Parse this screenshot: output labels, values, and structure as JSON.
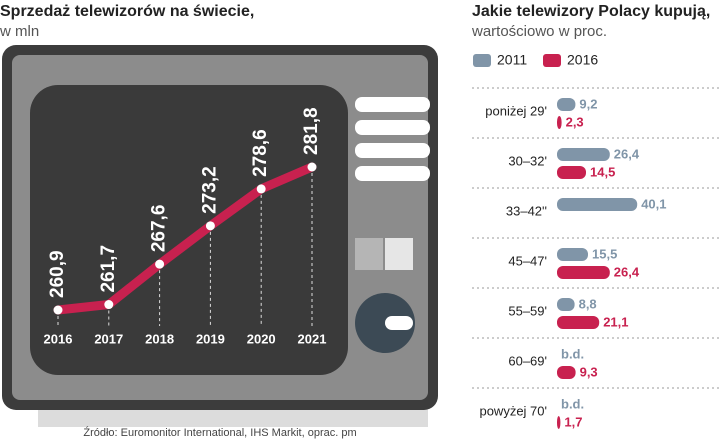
{
  "chart_data": [
    {
      "type": "line",
      "title": "Sprzedaż telewizorów na świecie,",
      "subtitle": "w mln",
      "categories": [
        "2016",
        "2017",
        "2018",
        "2019",
        "2020",
        "2021"
      ],
      "values": [
        260.9,
        261.7,
        267.6,
        273.2,
        278.6,
        281.8
      ],
      "value_labels": [
        "260,9",
        "261,7",
        "267,6",
        "273,2",
        "278,6",
        "281,8"
      ],
      "color": "#c8214f",
      "source": "Źródło: Euromonitor International, IHS Markit, oprac. pm"
    },
    {
      "type": "hbar",
      "title": "Jakie telewizory Polacy kupują,",
      "subtitle": "wartościowo w proc.",
      "categories": [
        "poniżej 29'",
        "30–32'",
        "33–42''",
        "45–47'",
        "55–59'",
        "60–69'",
        "powyżej 70'"
      ],
      "series": [
        {
          "name": "2011",
          "color": "#8095a8",
          "values": [
            9.2,
            26.4,
            40.1,
            15.5,
            8.8,
            null,
            null
          ],
          "value_labels": [
            "9,2",
            "26,4",
            "40,1",
            "15,5",
            "8,8",
            "b.d.",
            "b.d."
          ]
        },
        {
          "name": "2016",
          "color": "#c8214f",
          "values": [
            2.3,
            14.5,
            null,
            26.4,
            21.1,
            9.3,
            1.7
          ],
          "value_labels": [
            "2,3",
            "14,5",
            null,
            "26,4",
            "21,1",
            "9,3",
            "1,7"
          ]
        }
      ]
    }
  ]
}
